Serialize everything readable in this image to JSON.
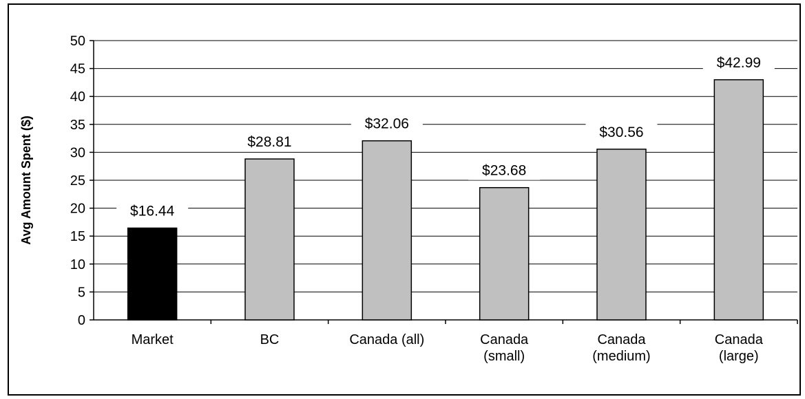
{
  "chart_data": {
    "type": "bar",
    "title": "",
    "xlabel": "",
    "ylabel": "Avg Amount Spent ($)",
    "ylim": [
      0,
      50
    ],
    "ytick_step": 5,
    "grid": true,
    "categories": [
      [
        "Market"
      ],
      [
        "BC"
      ],
      [
        "Canada (all)"
      ],
      [
        "Canada",
        "(small)"
      ],
      [
        "Canada",
        "(medium)"
      ],
      [
        "Canada",
        "(large)"
      ]
    ],
    "values": [
      16.44,
      28.81,
      32.06,
      23.68,
      30.56,
      42.99
    ],
    "data_labels": [
      "$16.44",
      "$28.81",
      "$32.06",
      "$23.68",
      "$30.56",
      "$42.99"
    ],
    "colors": {
      "highlight": "#000000",
      "default": "#c0c0c0",
      "grid": "#000000"
    },
    "highlight_index": 0
  }
}
